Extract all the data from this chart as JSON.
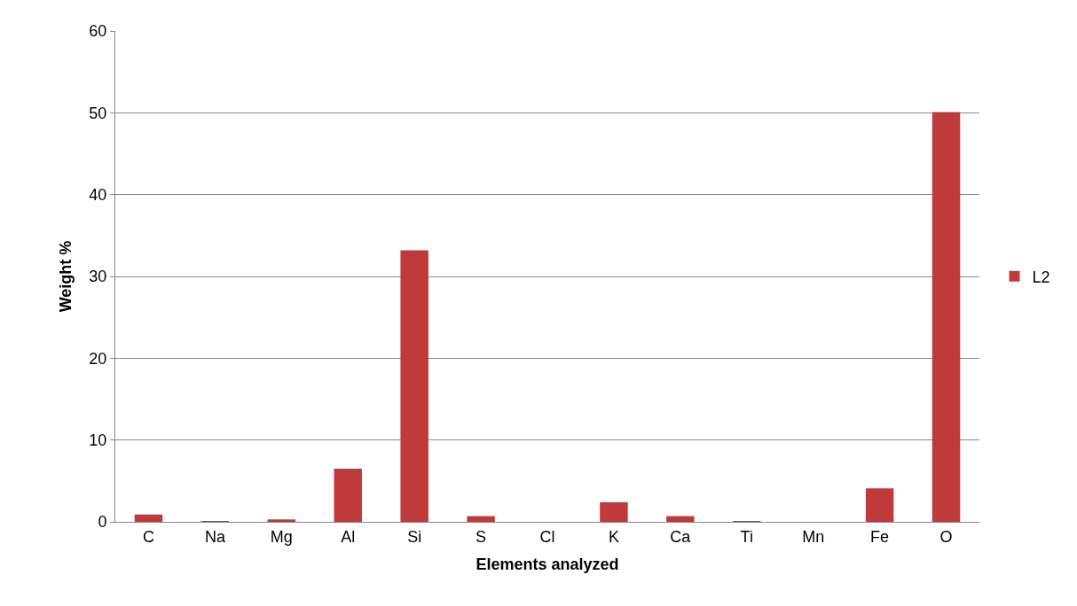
{
  "chart_data": {
    "type": "bar",
    "xlabel": "Elements analyzed",
    "ylabel": "Weight %",
    "categories": [
      "C",
      "Na",
      "Mg",
      "Al",
      "Si",
      "S",
      "Cl",
      "K",
      "Ca",
      "Ti",
      "Mn",
      "Fe",
      "O"
    ],
    "series": [
      {
        "name": "L2",
        "color": "#c0393b",
        "values": [
          0.9,
          0.1,
          0.3,
          6.5,
          33.2,
          0.7,
          0,
          2.4,
          0.7,
          0.1,
          0,
          4.1,
          50.1
        ]
      }
    ],
    "ylim": [
      0,
      60
    ],
    "yticks": [
      0,
      10,
      20,
      30,
      40,
      50,
      60
    ],
    "grid": "y",
    "legend": "right"
  }
}
